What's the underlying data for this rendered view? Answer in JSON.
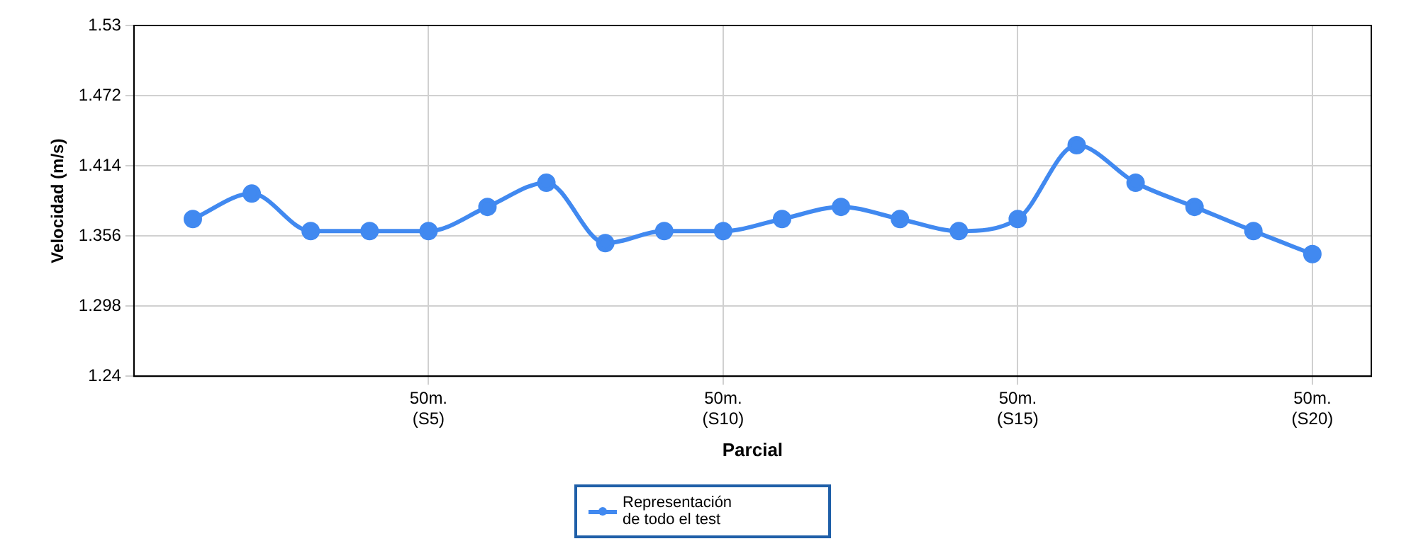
{
  "chart_data": {
    "type": "line",
    "xlabel": "Parcial",
    "ylabel": "Velocidad (m/s)",
    "categories": [
      null,
      null,
      null,
      null,
      "50m.\n(S5)",
      null,
      null,
      null,
      null,
      "50m.\n(S10)",
      null,
      null,
      null,
      null,
      "50m.\n(S15)",
      null,
      null,
      null,
      null,
      "50m.\n(S20)"
    ],
    "series": [
      {
        "name": "Representación\nde todo el test",
        "color": "#4189f0",
        "values": [
          1.37,
          1.391,
          1.36,
          1.36,
          1.36,
          1.38,
          1.4,
          1.35,
          1.36,
          1.36,
          1.37,
          1.38,
          1.37,
          1.36,
          1.37,
          1.431,
          1.4,
          1.38,
          1.36,
          1.341
        ]
      }
    ],
    "ylim": [
      1.24,
      1.53
    ],
    "yticks": [
      1.24,
      1.298,
      1.356,
      1.414,
      1.472,
      1.53
    ],
    "grid": true,
    "legend": "bottom",
    "marker": "circle",
    "line_style": "solid"
  }
}
